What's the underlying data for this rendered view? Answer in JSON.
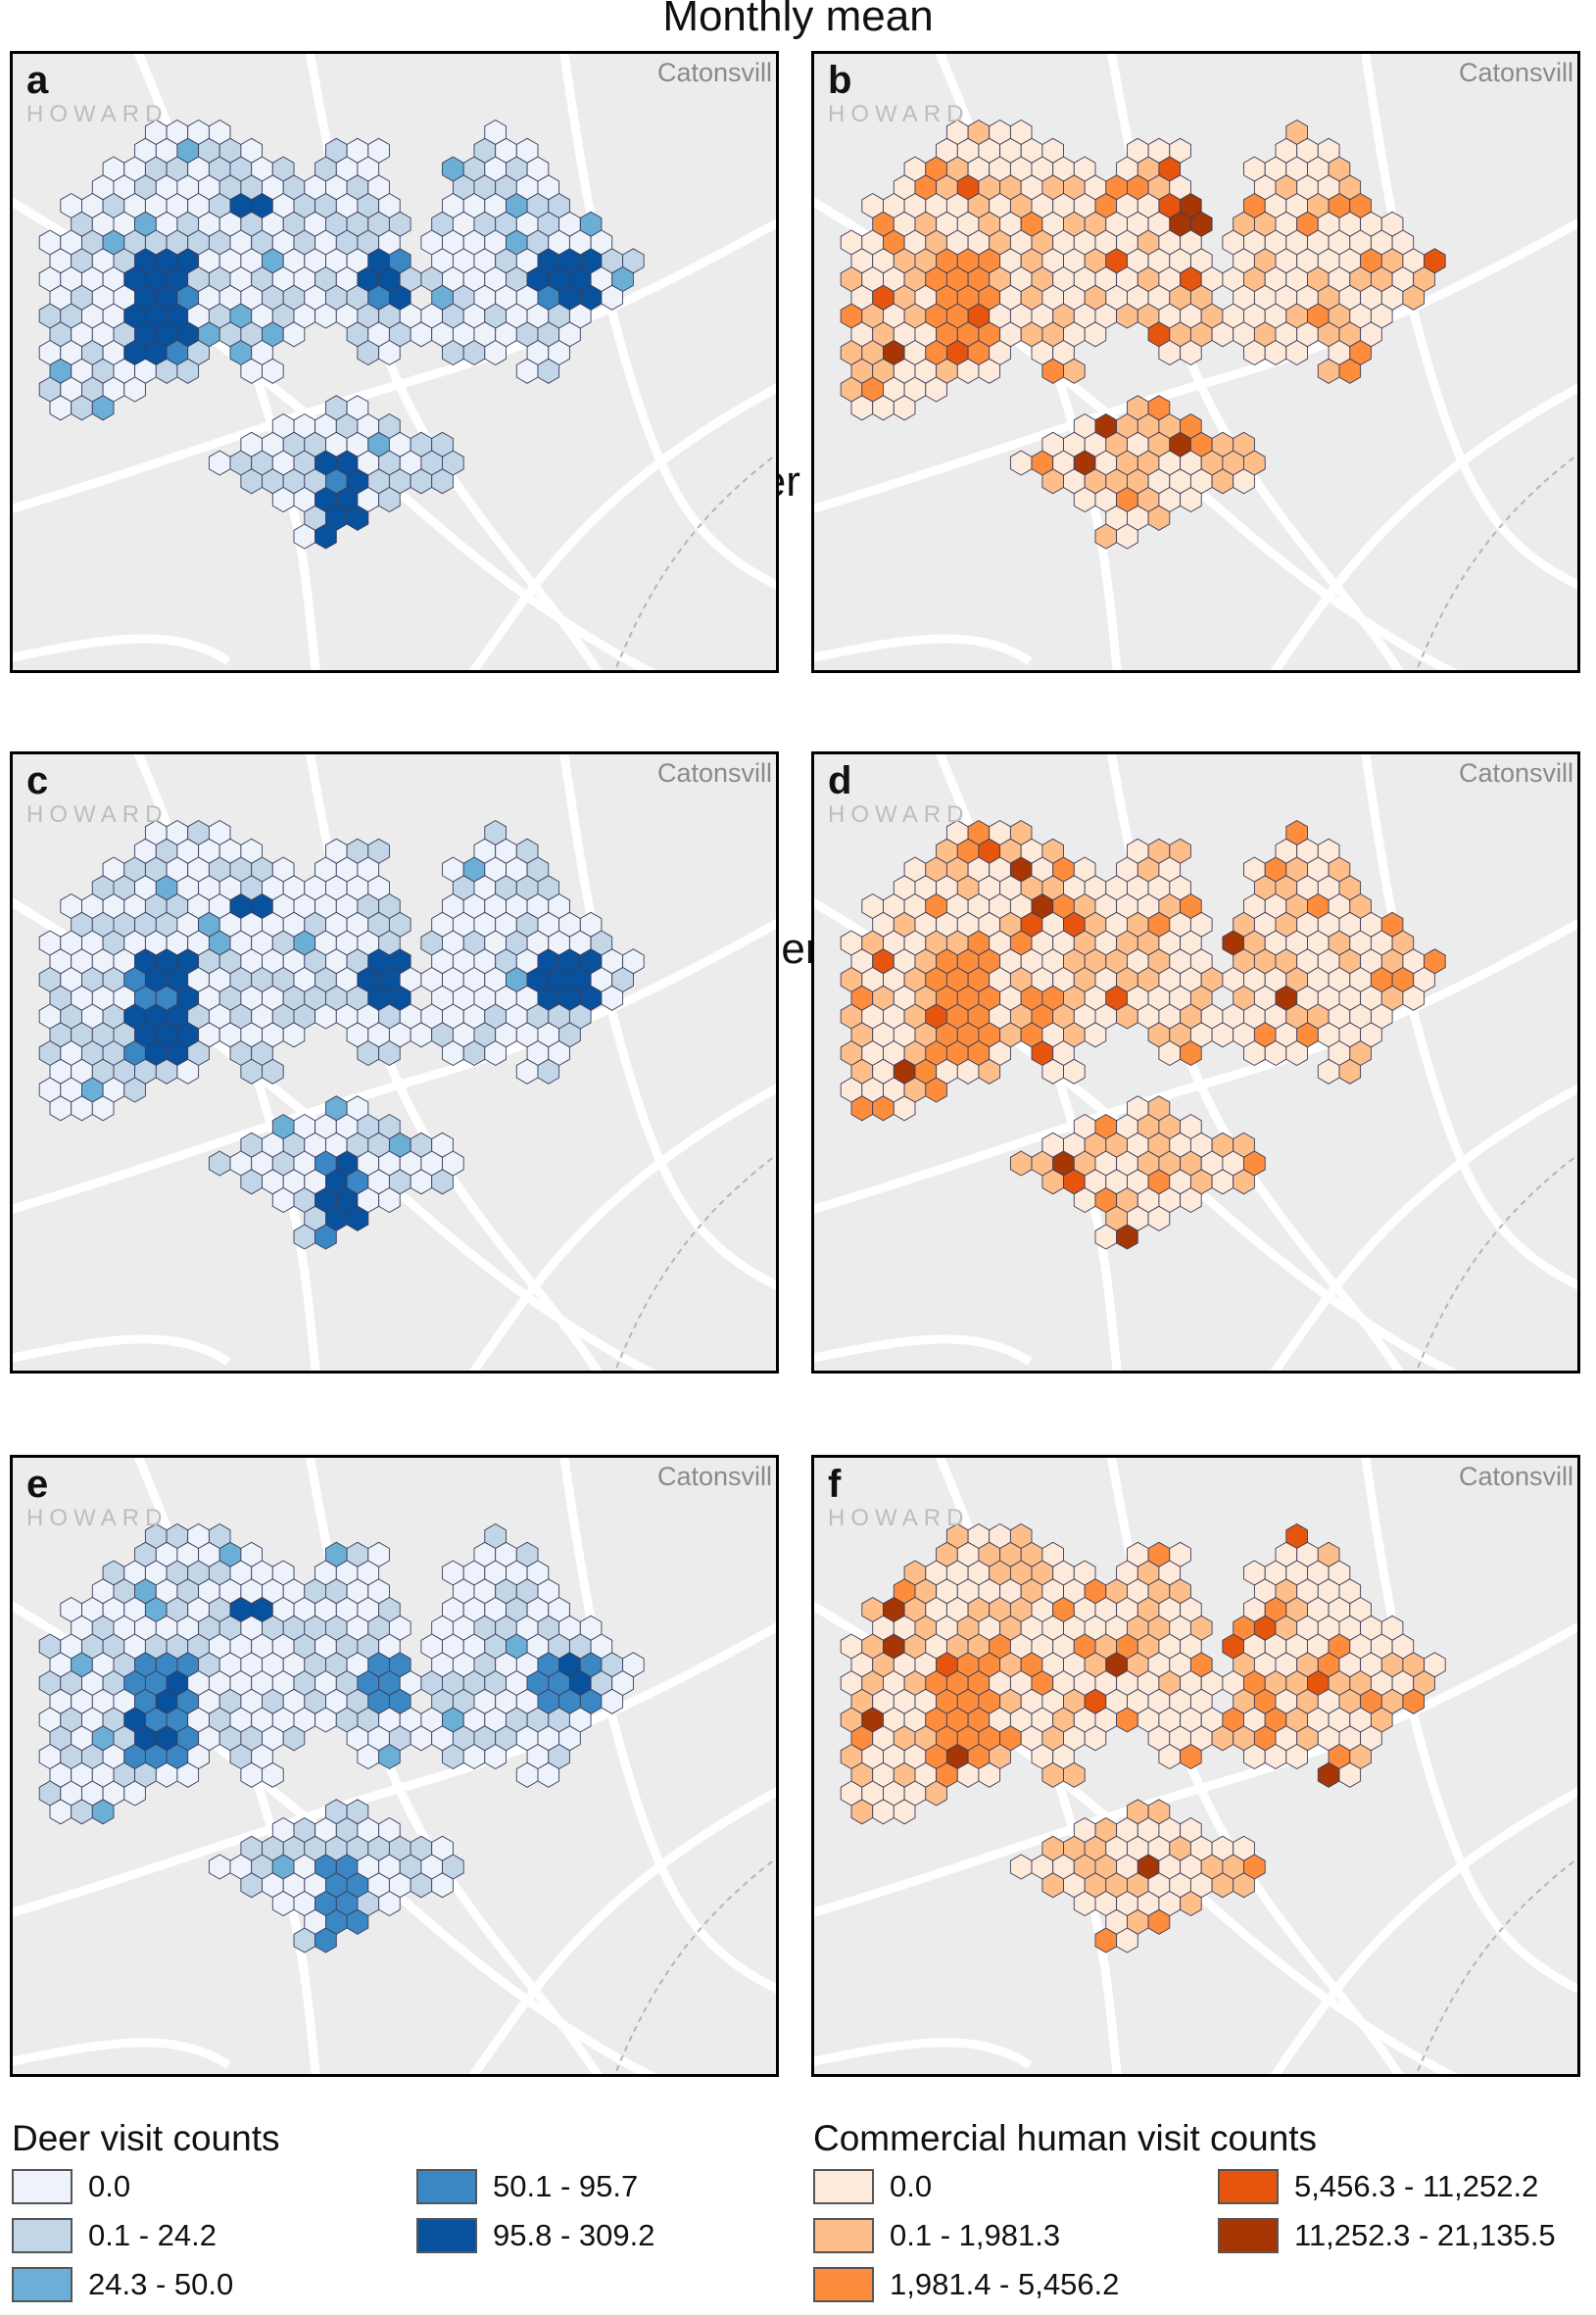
{
  "rows": [
    {
      "title": "Monthly mean"
    },
    {
      "title": "Winter mean"
    },
    {
      "title": "Summer mean"
    }
  ],
  "panels": [
    {
      "letter": "a",
      "scheme": "deer"
    },
    {
      "letter": "b",
      "scheme": "human"
    },
    {
      "letter": "c",
      "scheme": "deer"
    },
    {
      "letter": "d",
      "scheme": "human"
    },
    {
      "letter": "e",
      "scheme": "deer"
    },
    {
      "letter": "f",
      "scheme": "human"
    }
  ],
  "map_labels": {
    "howard": "HOWARD",
    "catonsville": "Catonsvill"
  },
  "legend": {
    "deer": {
      "title": "Deer visit counts",
      "classes": [
        {
          "label": "0.0",
          "color": "#eef2fb"
        },
        {
          "label": "0.1 - 24.2",
          "color": "#c2d6e7"
        },
        {
          "label": "24.3 - 50.0",
          "color": "#6baed6"
        },
        {
          "label": "50.1 - 95.7",
          "color": "#3a87c4"
        },
        {
          "label": "95.8 - 309.2",
          "color": "#08519c"
        }
      ]
    },
    "human": {
      "title": "Commercial human visit counts",
      "classes": [
        {
          "label": "0.0",
          "color": "#feeadb"
        },
        {
          "label": "0.1 - 1,981.3",
          "color": "#fdbe8a"
        },
        {
          "label": "1,981.4 - 5,456.2",
          "color": "#fd8d3c"
        },
        {
          "label": "5,456.3 - 11,252.2",
          "color": "#e6550d"
        },
        {
          "label": "11,252.3 - 21,135.5",
          "color": "#a63603"
        }
      ]
    }
  },
  "colors": {
    "map_bg": "#ececec",
    "road": "#ffffff",
    "hex_stroke": "#3a3f5c"
  }
}
